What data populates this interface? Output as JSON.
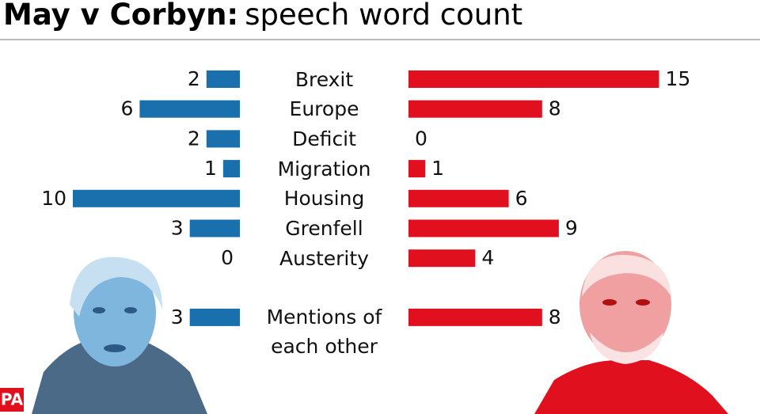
{
  "chart_data": {
    "type": "butterfly-bar",
    "title": "May v Corbyn:",
    "subtitle": "speech word count",
    "categories": [
      "Brexit",
      "Europe",
      "Deficit",
      "Migration",
      "Housing",
      "Grenfell",
      "Austerity",
      "Mentions of each other"
    ],
    "series": [
      {
        "color": "#1a6fad",
        "values": [
          2,
          6,
          2,
          1,
          10,
          3,
          0,
          3
        ]
      },
      {
        "color": "#e0101e",
        "values": [
          15,
          8,
          0,
          1,
          6,
          9,
          4,
          8
        ]
      }
    ],
    "source": "PA"
  }
}
